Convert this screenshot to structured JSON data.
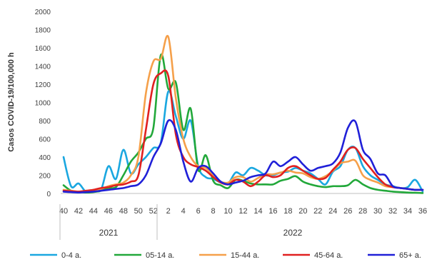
{
  "chart_data": {
    "type": "line",
    "title": "",
    "ylabel": "Casos COVID-19/100,000 h",
    "xlabel": "",
    "ylim": [
      0,
      2000
    ],
    "yticks": [
      0,
      200,
      400,
      600,
      800,
      1000,
      1200,
      1400,
      1600,
      1800,
      2000
    ],
    "weeks": [
      40,
      41,
      42,
      43,
      44,
      45,
      46,
      47,
      48,
      49,
      50,
      51,
      52,
      1,
      2,
      3,
      4,
      5,
      6,
      7,
      8,
      9,
      10,
      11,
      12,
      13,
      14,
      15,
      16,
      17,
      18,
      19,
      20,
      21,
      22,
      23,
      24,
      25,
      26,
      27,
      28,
      29,
      30,
      31,
      32,
      33,
      34,
      35,
      36
    ],
    "xtick_labels": [
      "40",
      "42",
      "44",
      "46",
      "48",
      "50",
      "52",
      "2",
      "4",
      "6",
      "8",
      "10",
      "12",
      "14",
      "16",
      "18",
      "20",
      "22",
      "24",
      "26",
      "28",
      "30",
      "32",
      "34",
      "36"
    ],
    "year_groups": [
      {
        "label": "2021",
        "start_index": 0,
        "end_index": 12
      },
      {
        "label": "2022",
        "start_index": 13,
        "end_index": 48
      }
    ],
    "grid": false,
    "legend_position": "bottom",
    "series": [
      {
        "name": "0-4 a.",
        "color": "#1aa7e0",
        "values": [
          400,
          80,
          110,
          20,
          40,
          40,
          300,
          160,
          480,
          220,
          320,
          400,
          500,
          560,
          1120,
          850,
          600,
          800,
          300,
          180,
          160,
          120,
          110,
          230,
          200,
          280,
          250,
          200,
          200,
          230,
          240,
          280,
          250,
          220,
          160,
          100,
          240,
          300,
          480,
          500,
          300,
          200,
          150,
          100,
          80,
          60,
          70,
          150,
          20
        ]
      },
      {
        "name": "05-14 a.",
        "color": "#22a83a",
        "values": [
          90,
          30,
          20,
          10,
          15,
          30,
          60,
          70,
          200,
          350,
          450,
          600,
          720,
          1520,
          1150,
          1220,
          700,
          930,
          260,
          420,
          140,
          90,
          60,
          150,
          140,
          110,
          100,
          100,
          100,
          140,
          160,
          190,
          130,
          100,
          80,
          70,
          80,
          80,
          90,
          150,
          100,
          60,
          40,
          30,
          20,
          15,
          10,
          8,
          5
        ]
      },
      {
        "name": "15-44 a.",
        "color": "#f5a04a",
        "values": [
          40,
          30,
          20,
          25,
          30,
          50,
          80,
          100,
          120,
          200,
          400,
          1100,
          1450,
          1480,
          1720,
          1050,
          600,
          400,
          300,
          280,
          200,
          130,
          120,
          180,
          180,
          130,
          170,
          210,
          210,
          230,
          250,
          230,
          220,
          180,
          160,
          190,
          250,
          330,
          350,
          360,
          200,
          150,
          120,
          80,
          70,
          60,
          50,
          40,
          40
        ]
      },
      {
        "name": "45-64 a.",
        "color": "#e02020",
        "values": [
          30,
          25,
          20,
          30,
          40,
          60,
          70,
          90,
          100,
          130,
          200,
          700,
          1200,
          1320,
          1290,
          650,
          400,
          320,
          290,
          250,
          180,
          120,
          100,
          150,
          130,
          80,
          130,
          200,
          180,
          200,
          280,
          300,
          250,
          200,
          160,
          170,
          260,
          350,
          480,
          500,
          380,
          280,
          180,
          100,
          70,
          60,
          50,
          40,
          40
        ]
      },
      {
        "name": "65+ a.",
        "color": "#2020d8",
        "values": [
          20,
          15,
          10,
          15,
          20,
          30,
          40,
          50,
          60,
          80,
          100,
          200,
          400,
          550,
          800,
          700,
          350,
          130,
          280,
          300,
          220,
          130,
          100,
          120,
          140,
          180,
          200,
          220,
          350,
          300,
          350,
          400,
          320,
          250,
          280,
          300,
          330,
          450,
          720,
          790,
          480,
          380,
          220,
          200,
          80,
          60,
          50,
          40,
          40
        ]
      }
    ]
  }
}
